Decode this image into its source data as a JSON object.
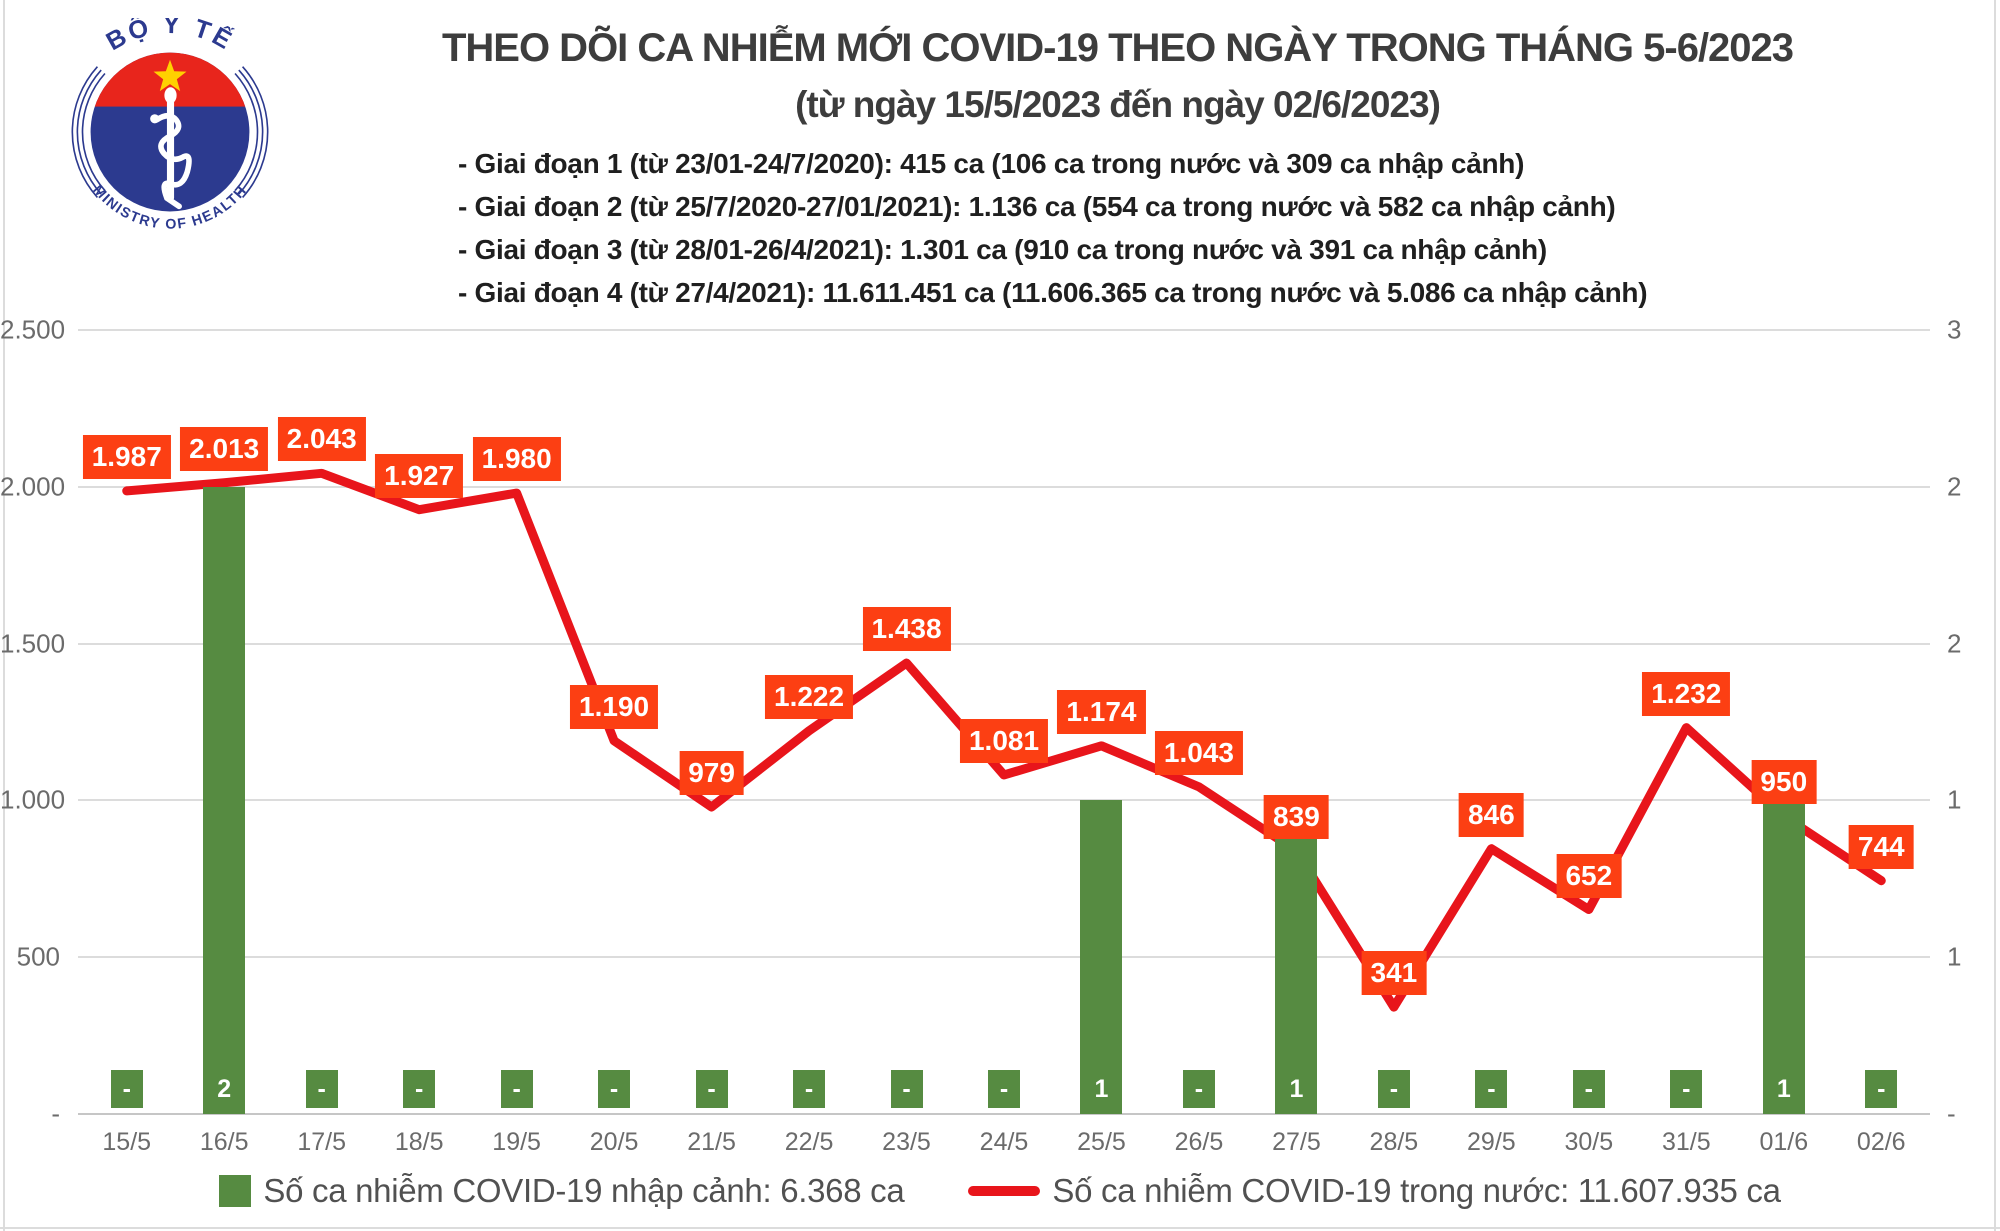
{
  "header": {
    "title": "THEO DÕI CA NHIỄM MỚI COVID-19 THEO NGÀY TRONG THÁNG 5-6/2023",
    "subtitle": "(từ ngày 15/5/2023 đến ngày 02/6/2023)",
    "notes": [
      "- Giai đoạn 1 (từ 23/01-24/7/2020): 415 ca (106 ca trong nước và 309 ca nhập cảnh)",
      "- Giai đoạn 2 (từ 25/7/2020-27/01/2021): 1.136 ca (554 ca trong nước và 582 ca nhập cảnh)",
      "- Giai đoạn 3 (từ 28/01-26/4/2021): 1.301 ca (910 ca trong nước và 391 ca nhập cảnh)",
      "- Giai đoạn 4 (từ 27/4/2021): 11.611.451 ca (11.606.365 ca trong nước và 5.086 ca nhập cảnh)"
    ]
  },
  "logo": {
    "top_text": "BỘ Y TẾ",
    "bottom_text": "MINISTRY OF HEALTH"
  },
  "chart_data": {
    "type": "bar+line combo",
    "categories": [
      "15/5",
      "16/5",
      "17/5",
      "18/5",
      "19/5",
      "20/5",
      "21/5",
      "22/5",
      "23/5",
      "24/5",
      "25/5",
      "26/5",
      "27/5",
      "28/5",
      "29/5",
      "30/5",
      "31/5",
      "01/6",
      "02/6"
    ],
    "series": [
      {
        "name": "Số ca nhiễm COVID-19 nhập cảnh",
        "type": "bar",
        "axis": "right",
        "values": [
          0,
          2,
          0,
          0,
          0,
          0,
          0,
          0,
          0,
          0,
          1,
          0,
          1,
          0,
          0,
          0,
          0,
          1,
          0
        ],
        "labels": [
          "-",
          "2",
          "-",
          "-",
          "-",
          "-",
          "-",
          "-",
          "-",
          "-",
          "1",
          "-",
          "1",
          "-",
          "-",
          "-",
          "-",
          "1",
          "-"
        ]
      },
      {
        "name": "Số ca nhiễm COVID-19 trong nước",
        "type": "line",
        "axis": "left",
        "values": [
          1987,
          2013,
          2043,
          1927,
          1980,
          1190,
          979,
          1222,
          1438,
          1081,
          1174,
          1043,
          839,
          341,
          846,
          652,
          1232,
          950,
          744
        ],
        "labels": [
          "1.987",
          "2.013",
          "2.043",
          "1.927",
          "1.980",
          "1.190",
          "979",
          "1.222",
          "1.438",
          "1.081",
          "1.174",
          "1.043",
          "839",
          "341",
          "846",
          "652",
          "1.232",
          "950",
          "744"
        ]
      }
    ],
    "left_axis": {
      "min": 0,
      "max": 2500,
      "ticks": [
        "2.500",
        "2.000",
        "1.500",
        "1.000",
        "500",
        "-"
      ]
    },
    "right_axis": {
      "min": 0,
      "max": 2.5,
      "ticks": [
        "3",
        "2",
        "2",
        "1",
        "1",
        "-"
      ]
    },
    "grid": true,
    "legend_position": "bottom"
  },
  "legend": [
    {
      "swatch": "bar",
      "label": "Số ca nhiễm COVID-19 nhập cảnh: 6.368 ca"
    },
    {
      "swatch": "line",
      "label": "Số ca nhiễm COVID-19 trong nước: 11.607.935 ca"
    }
  ],
  "colors": {
    "red_line": "#e8151b",
    "label_bg": "#fc3f13",
    "bar_green": "#568b41",
    "axis_text": "#6b6b6b",
    "grid": "#dcdcdc",
    "title_color": "#3d3d3d",
    "note_color": "#1f1f1f",
    "legend_text": "#515151",
    "logo_blue": "#2c3a8f",
    "flag_red": "#e8251c",
    "star_yellow": "#ffd100"
  }
}
